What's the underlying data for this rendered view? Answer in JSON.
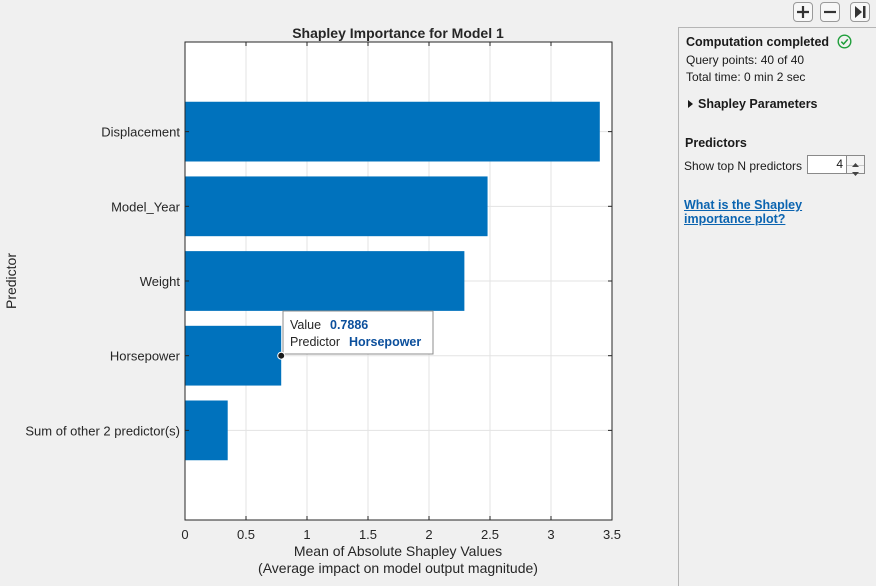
{
  "toolbar": {
    "zoom_in_icon": "plus-icon",
    "zoom_out_icon": "minus-icon",
    "collapse_icon": "collapse-panel-icon"
  },
  "panel": {
    "status_title": "Computation completed",
    "status_icon": "check-circle-icon",
    "query_points": "Query points: 40 of 40",
    "total_time": "Total time: 0 min 2  sec",
    "shapley_params_label": "Shapley Parameters",
    "predictors_heading": "Predictors",
    "top_n_label": "Show top N predictors",
    "top_n_value": "4",
    "help_link": "What is the Shapley importance plot?"
  },
  "chart_data": {
    "type": "bar",
    "orientation": "horizontal",
    "title": "Shapley Importance for Model 1",
    "ylabel": "Predictor",
    "xlabel": "Mean of Absolute Shapley Values",
    "xlabel2": "(Average impact on model output magnitude)",
    "categories": [
      "Displacement",
      "Model_Year",
      "Weight",
      "Horsepower",
      "Sum of other 2 predictor(s)"
    ],
    "values": [
      3.4,
      2.48,
      2.29,
      0.7886,
      0.35
    ],
    "xlim": [
      0,
      3.5
    ],
    "xticks": [
      0,
      0.5,
      1,
      1.5,
      2,
      2.5,
      3,
      3.5
    ],
    "xtick_labels": [
      "0",
      "0.5",
      "1",
      "1.5",
      "2",
      "2.5",
      "3",
      "3.5"
    ],
    "grid": true,
    "bar_color": "#0072bd",
    "datatip": {
      "category": "Horsepower",
      "value_label": "Value",
      "value_text": "0.7886",
      "predictor_label": "Predictor",
      "predictor_text": "Horsepower"
    }
  }
}
